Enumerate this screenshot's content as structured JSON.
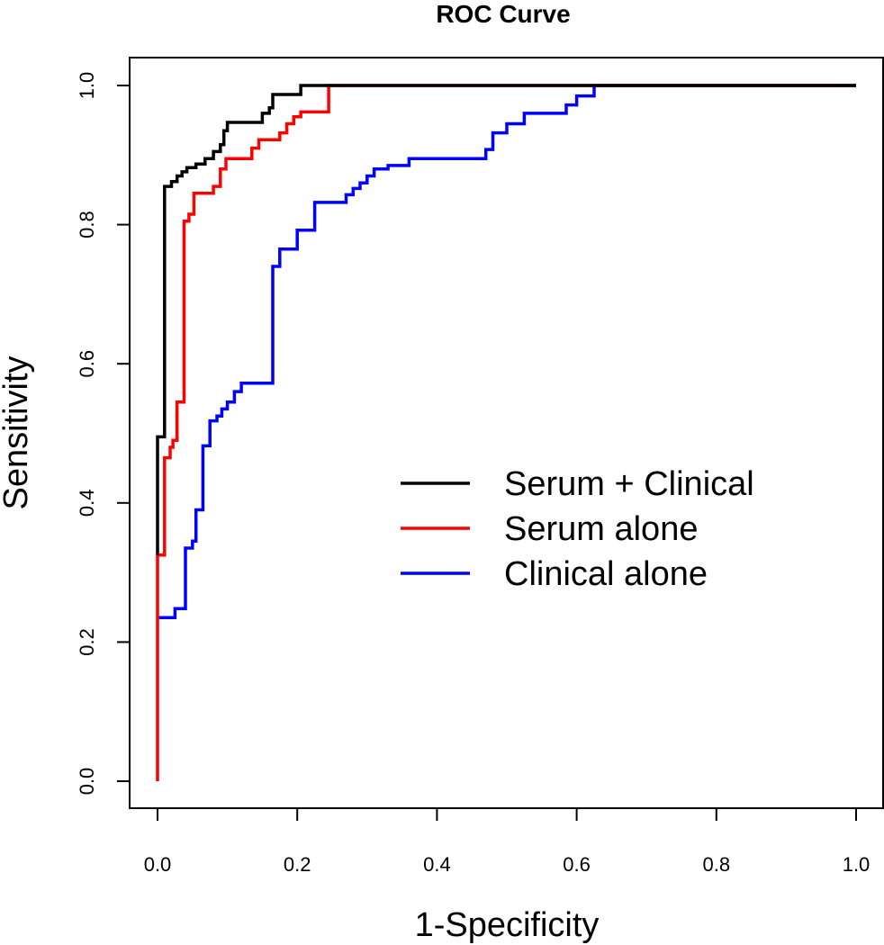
{
  "chart_data": {
    "type": "line",
    "title": "ROC Curve",
    "xlabel": "1-Specificity",
    "ylabel": "Sensitivity",
    "xlim": [
      0,
      1
    ],
    "ylim": [
      0,
      1
    ],
    "x_ticks": [
      0.0,
      0.2,
      0.4,
      0.6,
      0.8,
      1.0
    ],
    "x_tick_labels": [
      "0.0",
      "0.2",
      "0.4",
      "0.6",
      "0.8",
      "1.0"
    ],
    "y_ticks": [
      0.0,
      0.2,
      0.4,
      0.6,
      0.8,
      1.0
    ],
    "y_tick_labels": [
      "0.0",
      "0.2",
      "0.4",
      "0.6",
      "0.8",
      "1.0"
    ],
    "grid": false,
    "legend_position": "center-right",
    "series": [
      {
        "name": "Serum + Clinical",
        "color": "#000000",
        "points": [
          [
            0.0,
            0.325
          ],
          [
            0.0,
            0.495
          ],
          [
            0.01,
            0.495
          ],
          [
            0.01,
            0.855
          ],
          [
            0.02,
            0.855
          ],
          [
            0.02,
            0.862
          ],
          [
            0.028,
            0.862
          ],
          [
            0.028,
            0.87
          ],
          [
            0.035,
            0.87
          ],
          [
            0.035,
            0.876
          ],
          [
            0.042,
            0.876
          ],
          [
            0.042,
            0.882
          ],
          [
            0.055,
            0.882
          ],
          [
            0.055,
            0.887
          ],
          [
            0.068,
            0.887
          ],
          [
            0.068,
            0.895
          ],
          [
            0.08,
            0.895
          ],
          [
            0.08,
            0.905
          ],
          [
            0.09,
            0.905
          ],
          [
            0.09,
            0.915
          ],
          [
            0.095,
            0.915
          ],
          [
            0.095,
            0.935
          ],
          [
            0.1,
            0.935
          ],
          [
            0.1,
            0.947
          ],
          [
            0.15,
            0.947
          ],
          [
            0.15,
            0.96
          ],
          [
            0.16,
            0.96
          ],
          [
            0.16,
            0.968
          ],
          [
            0.165,
            0.968
          ],
          [
            0.165,
            0.987
          ],
          [
            0.205,
            0.987
          ],
          [
            0.205,
            1.0
          ],
          [
            1.0,
            1.0
          ]
        ]
      },
      {
        "name": "Serum alone",
        "color": "#ff0000",
        "points": [
          [
            0.0,
            0.0
          ],
          [
            0.0,
            0.325
          ],
          [
            0.01,
            0.325
          ],
          [
            0.01,
            0.465
          ],
          [
            0.018,
            0.465
          ],
          [
            0.018,
            0.48
          ],
          [
            0.022,
            0.48
          ],
          [
            0.022,
            0.49
          ],
          [
            0.028,
            0.49
          ],
          [
            0.028,
            0.545
          ],
          [
            0.038,
            0.545
          ],
          [
            0.038,
            0.805
          ],
          [
            0.045,
            0.805
          ],
          [
            0.045,
            0.815
          ],
          [
            0.052,
            0.815
          ],
          [
            0.052,
            0.845
          ],
          [
            0.08,
            0.845
          ],
          [
            0.08,
            0.855
          ],
          [
            0.09,
            0.855
          ],
          [
            0.09,
            0.88
          ],
          [
            0.098,
            0.88
          ],
          [
            0.098,
            0.895
          ],
          [
            0.135,
            0.895
          ],
          [
            0.135,
            0.91
          ],
          [
            0.145,
            0.91
          ],
          [
            0.145,
            0.922
          ],
          [
            0.175,
            0.922
          ],
          [
            0.175,
            0.932
          ],
          [
            0.185,
            0.932
          ],
          [
            0.185,
            0.945
          ],
          [
            0.195,
            0.945
          ],
          [
            0.195,
            0.955
          ],
          [
            0.205,
            0.955
          ],
          [
            0.205,
            0.962
          ],
          [
            0.245,
            0.962
          ],
          [
            0.245,
            1.0
          ],
          [
            1.0,
            1.0
          ]
        ]
      },
      {
        "name": "Clinical alone",
        "color": "#0000ff",
        "points": [
          [
            0.0,
            0.235
          ],
          [
            0.025,
            0.235
          ],
          [
            0.025,
            0.248
          ],
          [
            0.04,
            0.248
          ],
          [
            0.04,
            0.335
          ],
          [
            0.05,
            0.335
          ],
          [
            0.05,
            0.345
          ],
          [
            0.055,
            0.345
          ],
          [
            0.055,
            0.39
          ],
          [
            0.065,
            0.39
          ],
          [
            0.065,
            0.482
          ],
          [
            0.075,
            0.482
          ],
          [
            0.075,
            0.518
          ],
          [
            0.085,
            0.518
          ],
          [
            0.085,
            0.525
          ],
          [
            0.092,
            0.525
          ],
          [
            0.092,
            0.535
          ],
          [
            0.1,
            0.535
          ],
          [
            0.1,
            0.545
          ],
          [
            0.11,
            0.545
          ],
          [
            0.11,
            0.56
          ],
          [
            0.12,
            0.56
          ],
          [
            0.12,
            0.572
          ],
          [
            0.165,
            0.572
          ],
          [
            0.165,
            0.74
          ],
          [
            0.175,
            0.74
          ],
          [
            0.175,
            0.765
          ],
          [
            0.2,
            0.765
          ],
          [
            0.2,
            0.792
          ],
          [
            0.225,
            0.792
          ],
          [
            0.225,
            0.832
          ],
          [
            0.27,
            0.832
          ],
          [
            0.27,
            0.843
          ],
          [
            0.28,
            0.843
          ],
          [
            0.28,
            0.852
          ],
          [
            0.29,
            0.852
          ],
          [
            0.29,
            0.86
          ],
          [
            0.3,
            0.86
          ],
          [
            0.3,
            0.87
          ],
          [
            0.31,
            0.87
          ],
          [
            0.31,
            0.88
          ],
          [
            0.33,
            0.88
          ],
          [
            0.33,
            0.885
          ],
          [
            0.36,
            0.885
          ],
          [
            0.36,
            0.895
          ],
          [
            0.47,
            0.895
          ],
          [
            0.47,
            0.908
          ],
          [
            0.48,
            0.908
          ],
          [
            0.48,
            0.932
          ],
          [
            0.5,
            0.932
          ],
          [
            0.5,
            0.945
          ],
          [
            0.525,
            0.945
          ],
          [
            0.525,
            0.96
          ],
          [
            0.585,
            0.96
          ],
          [
            0.585,
            0.972
          ],
          [
            0.6,
            0.972
          ],
          [
            0.6,
            0.985
          ],
          [
            0.625,
            0.985
          ],
          [
            0.625,
            1.0
          ],
          [
            1.0,
            1.0
          ]
        ]
      }
    ]
  }
}
